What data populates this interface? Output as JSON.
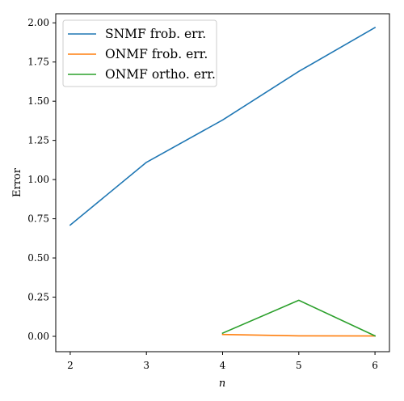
{
  "chart_data": {
    "type": "line",
    "title": "",
    "xlabel": "n",
    "ylabel": "Error",
    "xlim": [
      1.81,
      6.19
    ],
    "ylim": [
      -0.098,
      2.058
    ],
    "xticks": [
      2,
      3,
      4,
      5,
      6
    ],
    "yticks": [
      0.0,
      0.25,
      0.5,
      0.75,
      1.0,
      1.25,
      1.5,
      1.75,
      2.0
    ],
    "ytick_labels": [
      "0.00",
      "0.25",
      "0.50",
      "0.75",
      "1.00",
      "1.25",
      "1.50",
      "1.75",
      "2.00"
    ],
    "grid": false,
    "legend_position": "top-left",
    "series": [
      {
        "name": "SNMF frob. err.",
        "color": "#1f77b4",
        "x": [
          2,
          3,
          4,
          5,
          6
        ],
        "y": [
          0.71,
          1.11,
          1.38,
          1.69,
          1.97
        ]
      },
      {
        "name": "ONMF frob. err.",
        "color": "#ff7f0e",
        "x": [
          4,
          5,
          6
        ],
        "y": [
          0.012,
          0.003,
          0.002
        ]
      },
      {
        "name": "ONMF ortho. err.",
        "color": "#2ca02c",
        "x": [
          4,
          5,
          6
        ],
        "y": [
          0.02,
          0.23,
          0.003
        ]
      }
    ]
  }
}
